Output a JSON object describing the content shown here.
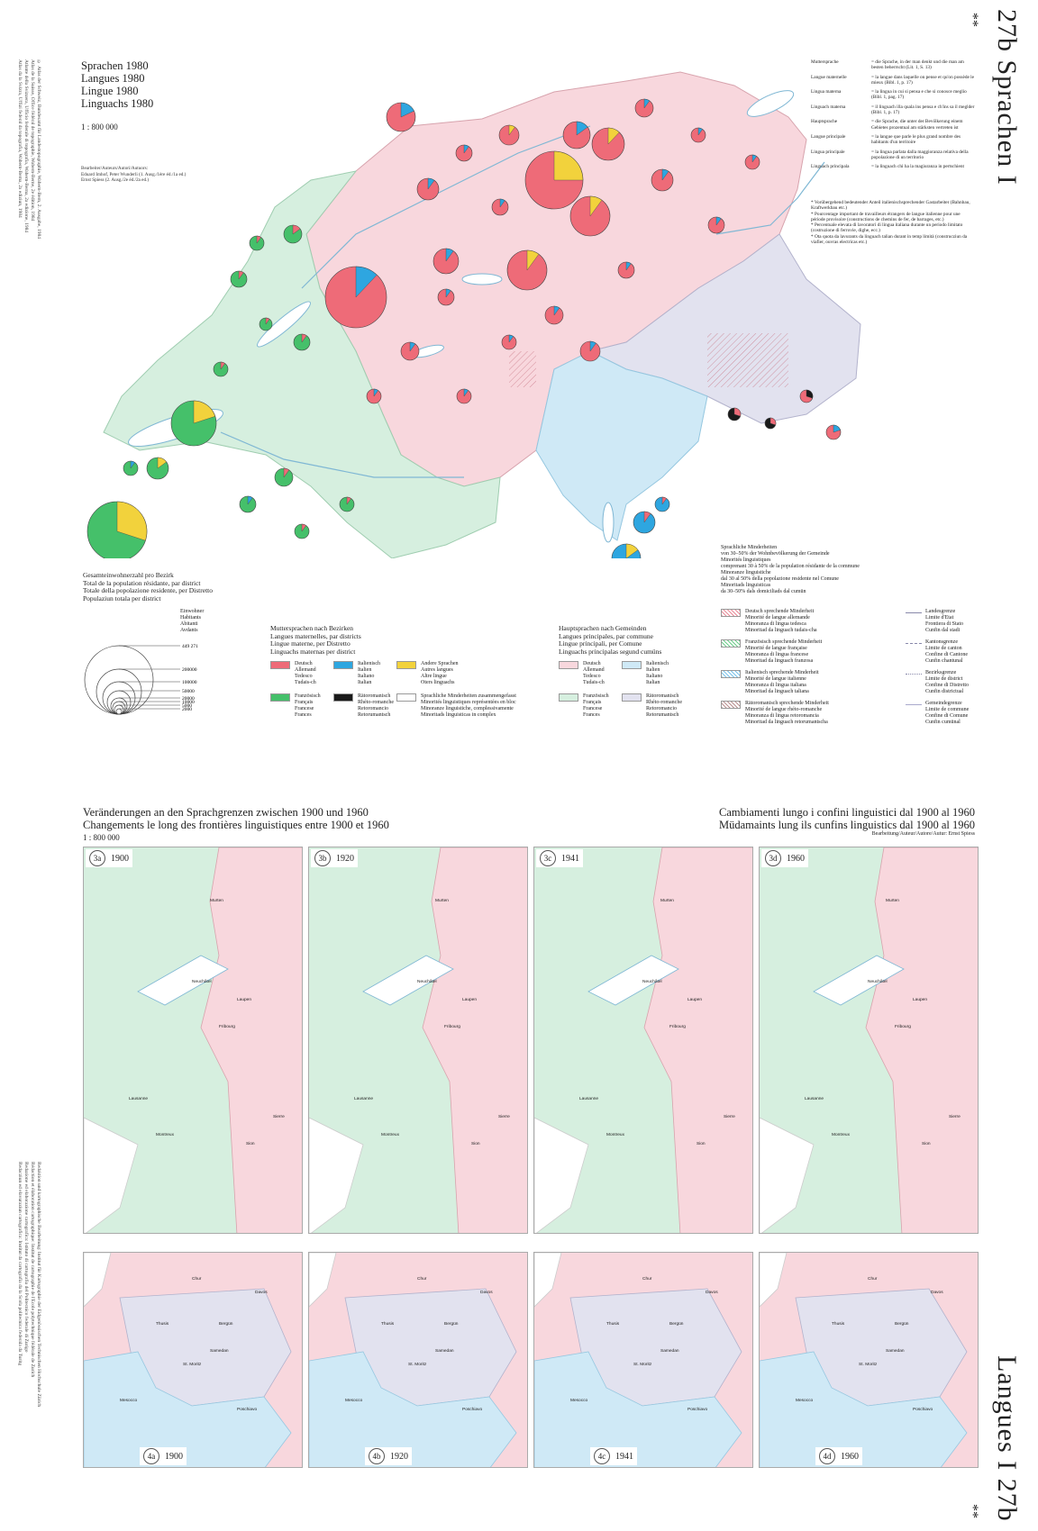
{
  "plate": {
    "title_top": "27b Sprachen I",
    "title_bottom": "Langues I 27b",
    "stars": "**"
  },
  "side_credits": {
    "top": [
      "© Atlas der Schweiz, Bundesamt für Landestopographie, Wabern-Bern, 2. Ausgabe, 1984",
      "Atlas de la Suisse, Office fédéral de topographie, Wabern-Berne, 2e édition, 1984",
      "Atlante della Svizzera, Ufficio federale di topografia, Wabern-Berna, 2a edizione, 1984",
      "Atlas da la Svizra, Uffizi federal da topografia, Wabern-Berna, 2a ediziun, 1984"
    ],
    "bottom": [
      "Redaktion und kartographische Bearbeitung: Institut für Kartographie der Eidgenössischen Technischen Hochschule Zürich",
      "Rédaction et élaboration cartographique: Institut de cartographie de l'Ecole polytechnique fédérale de Zurich",
      "Redazione ed elaborazione cartografica: Istituto di cartografia del Politecnico federale di Zurigo",
      "Redacziun ed elavuraziun cartografica: Institut da cartografia da la Scola politecnica federala da Turitg"
    ]
  },
  "main_map": {
    "titles": [
      "Sprachen 1980",
      "Langues 1980",
      "Lingue 1980",
      "Linguachs 1980"
    ],
    "scale": "1 : 800 000",
    "authors": [
      "Bearbeiter/Auteurs/Autori/Autuors:",
      "Eduard Imhof, Peter Wunderli (1. Ausg./1ère éd./1a ed.)",
      "Ernst Spiess (2. Ausg./2e éd./2a ed.)"
    ],
    "glossary": [
      {
        "term": "Muttersprache",
        "def": "= die Sprache, in der man denkt und die man am besten beherrscht (Lit. 1, S. 13)"
      },
      {
        "term": "Langue maternelle",
        "def": "= la langue dans laquelle on pense et qu'on possède le mieux (Bibl. 1, p. 17)"
      },
      {
        "term": "Lingua materna",
        "def": "= la lingua in cui si pensa e che si conosce meglio (Bibl. 1, pag. 17)"
      },
      {
        "term": "Linguach materna",
        "def": "= il linguach illa quala ins pensa e ch'ins sa il meglder (Bibl. 1, p. 17)"
      },
      {
        "term": "Hauptsprache",
        "def": "= die Sprache, die unter der Bevölkerung einem Gebietes prozentual am stärksten vertreten ist"
      },
      {
        "term": "Langue principale",
        "def": "= la langue que parle le plus grand nombre des habitants d'un territoire"
      },
      {
        "term": "Lingua principale",
        "def": "= la lingua parlata dalla maggioranza relativa della popolazione di un territorio"
      },
      {
        "term": "Linguach principala",
        "def": "= la linguach chi ha la magiuranza in pertschient"
      }
    ],
    "notes": [
      "* Vorübergehend bedeutender Anteil italienischsprechender Gastarbeiter (Bahnbau, Kraftwerkbau etc.)",
      "* Pourcentage important de travailleurs étrangers de langue italienne pour une période provisoire (constructions de chemins de fer, de barrages, etc.)",
      "* Percentuale elevata di lavoratori di lingua italiana durante un periodo limitato (costruzione di ferrovie, dighe, ecc.)",
      "* Ota quota da lavurants da linguach talian durant in temp limità (construcziun da viafier, ouvras electricas etc.)"
    ],
    "population_legend": {
      "heading": [
        "Gesamteinwohnerzahl pro Bezirk",
        "Total de la population résidante, par district",
        "Totale della popolazione residente, per Distretto",
        "Populaziun totala per district"
      ],
      "unit": [
        "Einwohner",
        "Habitants",
        "Abitanti",
        "Avdants"
      ],
      "values": [
        "449 271",
        "200000",
        "100000",
        "50000",
        "20000",
        "10000",
        "5000",
        "2000"
      ]
    },
    "mother_tongue_legend": {
      "heading": [
        "Muttersprachen nach Bezirken",
        "Langues maternelles, par districts",
        "Lingue materne, per Distretto",
        "Linguachs maternas per district"
      ],
      "items": [
        {
          "labels": [
            "Deutsch",
            "Allemand",
            "Tedesco",
            "Tudais-ch"
          ],
          "color": "#ee6b78"
        },
        {
          "labels": [
            "Italienisch",
            "Italien",
            "Italiano",
            "Italian"
          ],
          "color": "#2ea6e0"
        },
        {
          "labels": [
            "Andere Sprachen",
            "Autres langues",
            "Altre lingue",
            "Oters linguachs"
          ],
          "color": "#f2d23c"
        },
        {
          "labels": [
            "Französisch",
            "Français",
            "Francese",
            "Frances"
          ],
          "color": "#45c06a"
        },
        {
          "labels": [
            "Rätoromanisch",
            "Rhéto-romanche",
            "Retoromancio",
            "Retorumantsch"
          ],
          "color": "#1a1a1a"
        },
        {
          "labels": [
            "Sprachliche Minderheiten zusammengefasst",
            "Minorités linguistiques représentées en bloc",
            "Minoranze linguistiche, complessivamente",
            "Minoritads linguisticas in complex"
          ],
          "color": "#ffffff"
        }
      ]
    },
    "main_language_legend": {
      "heading": [
        "Hauptsprachen nach Gemeinden",
        "Langues principales, par commune",
        "Lingue principali, per Comune",
        "Linguachs principalas segund cumüns"
      ],
      "items": [
        {
          "labels": [
            "Deutsch",
            "Allemand",
            "Tedesco",
            "Tudais-ch"
          ],
          "color": "#f8d7dd"
        },
        {
          "labels": [
            "Italienisch",
            "Italien",
            "Italiano",
            "Italian"
          ],
          "color": "#cfe9f6"
        },
        {
          "labels": [
            "Französisch",
            "Français",
            "Francese",
            "Frances"
          ],
          "color": "#d6efdf"
        },
        {
          "labels": [
            "Rätoromanisch",
            "Rhéto-romanche",
            "Retoromancio",
            "Retorumantsch"
          ],
          "color": "#e2e2ef"
        }
      ]
    },
    "minorities_legend": {
      "heading": [
        "Sprachliche Minderheiten",
        "von 30–50% der Wohnbevölkerung der Gemeinde",
        "Minorités linguistiques",
        "comprenant 30 à 50% de la population résidante de la commune",
        "Minoranze linguistiche",
        "dal 30 al 50% della popolazione residente nel Comune",
        "Minoritads linguisticas",
        "da 30–50% dals domiciliads dal cumün"
      ],
      "items": [
        {
          "labels": [
            "Deutsch sprechende Minderheit",
            "Minorité de langue allemande",
            "Minoranza di lingua tedesca",
            "Minoritad da linguach tudais-cha"
          ],
          "color": "#e88a97"
        },
        {
          "labels": [
            "Französisch sprechende Minderheit",
            "Minorité de langue française",
            "Minoranza di lingua francese",
            "Minoritad da linguach franzosa"
          ],
          "color": "#6ccc8a"
        },
        {
          "labels": [
            "Italienisch sprechende Minderheit",
            "Minorité de langue italienne",
            "Minoranza di lingua italiana",
            "Minoritad da linguach taliana"
          ],
          "color": "#7ac3ea"
        },
        {
          "labels": [
            "Rätoromanisch sprechende Minderheit",
            "Minorité de langue rhéto-romanche",
            "Minoranza di lingua retoromancia",
            "Minoritad da linguach retorumantscha"
          ],
          "color": "#b99090"
        }
      ]
    },
    "boundaries_legend": [
      {
        "labels": [
          "Landesgrenze",
          "Limite d'Etat",
          "Frontiera di Stato",
          "Cunfin dal stadi"
        ],
        "style": "solid"
      },
      {
        "labels": [
          "Kantonsgrenze",
          "Limite de canton",
          "Confine di Cantone",
          "Cunfin chantunal"
        ],
        "style": "dash"
      },
      {
        "labels": [
          "Bezirksgrenze",
          "Limite de district",
          "Confine di Distretto",
          "Cunfin districtual"
        ],
        "style": "dot"
      },
      {
        "labels": [
          "Gemeindegrenze",
          "Limite de commune",
          "Confine di Comune",
          "Cunfin cumünal"
        ],
        "style": "thin"
      }
    ]
  },
  "change_maps": {
    "title_left": [
      "Veränderungen an den Sprachgrenzen zwischen 1900 und 1960",
      "Changements le long des frontières linguistiques entre 1900 et 1960"
    ],
    "title_right": [
      "Cambiamenti lungo i confini linguistici dal 1900 al 1960",
      "Müdamaints lung ils cunfins linguistics dal 1900 al 1960"
    ],
    "scale": "1 : 800 000",
    "author": "Bearbeitung/Auteur/Autore/Autur: Ernst Spiess",
    "row3": [
      {
        "num": "3a",
        "year": "1900"
      },
      {
        "num": "3b",
        "year": "1920"
      },
      {
        "num": "3c",
        "year": "1941"
      },
      {
        "num": "3d",
        "year": "1960"
      }
    ],
    "row4": [
      {
        "num": "4a",
        "year": "1900"
      },
      {
        "num": "4b",
        "year": "1920"
      },
      {
        "num": "4c",
        "year": "1941"
      },
      {
        "num": "4d",
        "year": "1960"
      }
    ],
    "places_west": [
      "Murten",
      "Neuchâtel",
      "Fribourg",
      "Laupen",
      "Lausanne",
      "Montreux",
      "Sion",
      "Sierre"
    ],
    "places_east": [
      "Chur",
      "Davos",
      "Thusis",
      "Bergün",
      "Samedan",
      "St. Moritz",
      "Mesocco",
      "Poschiavo"
    ]
  }
}
